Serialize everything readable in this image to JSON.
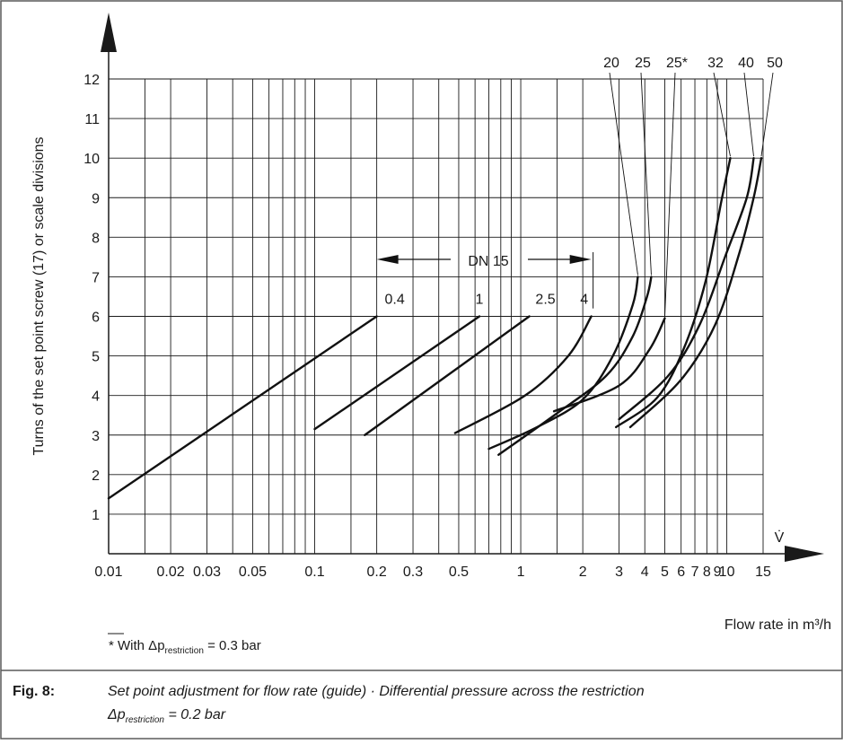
{
  "chart_data": {
    "type": "line",
    "x_scale": "log",
    "y_scale": "linear",
    "xlim": [
      0.01,
      15
    ],
    "ylim": [
      0,
      12
    ],
    "grid": true,
    "ylabel": "Turns of the set point screw (17) or scale divisions",
    "xlabel": "Flow rate in m³/h",
    "x_symbol": "V̇",
    "x_ticks": [
      {
        "value": 0.01,
        "label": "0.01"
      },
      {
        "value": 0.02,
        "label": "0.02"
      },
      {
        "value": 0.03,
        "label": "0.03"
      },
      {
        "value": 0.05,
        "label": "0.05"
      },
      {
        "value": 0.1,
        "label": "0.1"
      },
      {
        "value": 0.2,
        "label": "0.2"
      },
      {
        "value": 0.3,
        "label": "0.3"
      },
      {
        "value": 0.5,
        "label": "0.5"
      },
      {
        "value": 1,
        "label": "1"
      },
      {
        "value": 2,
        "label": "2"
      },
      {
        "value": 3,
        "label": "3"
      },
      {
        "value": 4,
        "label": "4"
      },
      {
        "value": 5,
        "label": "5"
      },
      {
        "value": 6,
        "label": "6"
      },
      {
        "value": 7,
        "label": "7"
      },
      {
        "value": 8,
        "label": "8"
      },
      {
        "value": 9,
        "label": "9"
      },
      {
        "value": 10,
        "label": "10"
      },
      {
        "value": 15,
        "label": "15"
      }
    ],
    "y_ticks": [
      1,
      2,
      3,
      4,
      5,
      6,
      7,
      8,
      9,
      10,
      11,
      12
    ],
    "series": [
      {
        "name": "0.4",
        "kind": "line",
        "points": [
          [
            0.01,
            1.4
          ],
          [
            0.2,
            6.0
          ]
        ]
      },
      {
        "name": "1",
        "kind": "line",
        "points": [
          [
            0.1,
            3.15
          ],
          [
            0.63,
            6.0
          ]
        ]
      },
      {
        "name": "2.5",
        "kind": "line",
        "points": [
          [
            0.175,
            3.0
          ],
          [
            1.1,
            6.0
          ]
        ]
      },
      {
        "name": "4",
        "kind": "curve",
        "points": [
          [
            0.48,
            3.05
          ],
          [
            1.05,
            4.0
          ],
          [
            1.7,
            5.0
          ],
          [
            2.2,
            6.0
          ]
        ]
      },
      {
        "name": "20",
        "kind": "curve",
        "points": [
          [
            0.7,
            2.65
          ],
          [
            1.2,
            3.2
          ],
          [
            2.0,
            3.9
          ],
          [
            2.8,
            5.0
          ],
          [
            3.5,
            6.3
          ],
          [
            3.7,
            7.0
          ]
        ]
      },
      {
        "name": "25",
        "kind": "curve",
        "points": [
          [
            0.78,
            2.5
          ],
          [
            1.5,
            3.55
          ],
          [
            2.6,
            4.5
          ],
          [
            3.5,
            5.5
          ],
          [
            4.1,
            6.5
          ],
          [
            4.3,
            7.0
          ]
        ]
      },
      {
        "name": "25*",
        "kind": "curve",
        "points": [
          [
            1.45,
            3.6
          ],
          [
            3.0,
            4.25
          ],
          [
            4.2,
            5.15
          ],
          [
            5.0,
            5.95
          ]
        ]
      },
      {
        "name": "32",
        "kind": "curve",
        "points": [
          [
            2.9,
            3.2
          ],
          [
            4.6,
            3.95
          ],
          [
            6.2,
            5.2
          ],
          [
            7.9,
            6.9
          ],
          [
            9.4,
            8.9
          ],
          [
            10.4,
            10.0
          ]
        ]
      },
      {
        "name": "40",
        "kind": "curve",
        "points": [
          [
            3.0,
            3.4
          ],
          [
            5.2,
            4.5
          ],
          [
            7.4,
            5.8
          ],
          [
            9.8,
            7.5
          ],
          [
            12.5,
            9.0
          ],
          [
            13.5,
            10.0
          ]
        ]
      },
      {
        "name": "50",
        "kind": "curve",
        "points": [
          [
            3.4,
            3.2
          ],
          [
            6.0,
            4.4
          ],
          [
            8.8,
            5.8
          ],
          [
            11.5,
            7.6
          ],
          [
            13.5,
            9.0
          ],
          [
            14.7,
            10.0
          ]
        ]
      }
    ],
    "annotations": {
      "dn_range_label": "DN 15",
      "dn_labels": [
        "20",
        "25",
        "25*",
        "32",
        "40",
        "50"
      ]
    }
  },
  "footnote": {
    "prefix": "* With Δp",
    "subscript": "restriction",
    "suffix": " = 0.3 bar"
  },
  "caption": {
    "label": "Fig. 8:",
    "line1": "Set point adjustment for flow rate (guide) · Differential pressure across the restriction",
    "line2_prefix": "Δp",
    "line2_subscript": "restriction",
    "line2_suffix": " = 0.2 bar"
  }
}
